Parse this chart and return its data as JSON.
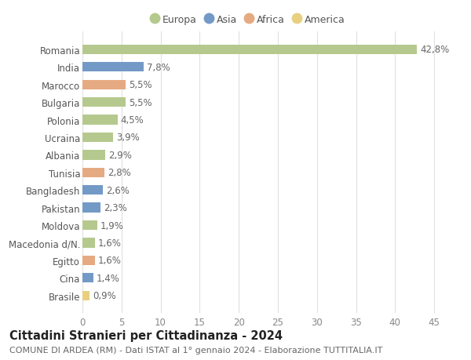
{
  "countries": [
    "Romania",
    "India",
    "Marocco",
    "Bulgaria",
    "Polonia",
    "Ucraina",
    "Albania",
    "Tunisia",
    "Bangladesh",
    "Pakistan",
    "Moldova",
    "Macedonia d/N.",
    "Egitto",
    "Cina",
    "Brasile"
  ],
  "values": [
    42.8,
    7.8,
    5.5,
    5.5,
    4.5,
    3.9,
    2.9,
    2.8,
    2.6,
    2.3,
    1.9,
    1.6,
    1.6,
    1.4,
    0.9
  ],
  "labels": [
    "42,8%",
    "7,8%",
    "5,5%",
    "5,5%",
    "4,5%",
    "3,9%",
    "2,9%",
    "2,8%",
    "2,6%",
    "2,3%",
    "1,9%",
    "1,6%",
    "1,6%",
    "1,4%",
    "0,9%"
  ],
  "continents": [
    "Europa",
    "Asia",
    "Africa",
    "Europa",
    "Europa",
    "Europa",
    "Europa",
    "Africa",
    "Asia",
    "Asia",
    "Europa",
    "Europa",
    "Africa",
    "Asia",
    "America"
  ],
  "colors": {
    "Europa": "#b5c98e",
    "Asia": "#7399c6",
    "Africa": "#e5aa82",
    "America": "#e8d080"
  },
  "legend_order": [
    "Europa",
    "Asia",
    "Africa",
    "America"
  ],
  "title": "Cittadini Stranieri per Cittadinanza - 2024",
  "subtitle": "COMUNE DI ARDEA (RM) - Dati ISTAT al 1° gennaio 2024 - Elaborazione TUTTITALIA.IT",
  "xlim": [
    0,
    47
  ],
  "xticks": [
    0,
    5,
    10,
    15,
    20,
    25,
    30,
    35,
    40,
    45
  ],
  "background_color": "#ffffff",
  "grid_color": "#e0e0e0",
  "title_fontsize": 10.5,
  "subtitle_fontsize": 8,
  "label_fontsize": 8.5,
  "tick_fontsize": 8.5,
  "legend_fontsize": 9,
  "bar_height": 0.55
}
